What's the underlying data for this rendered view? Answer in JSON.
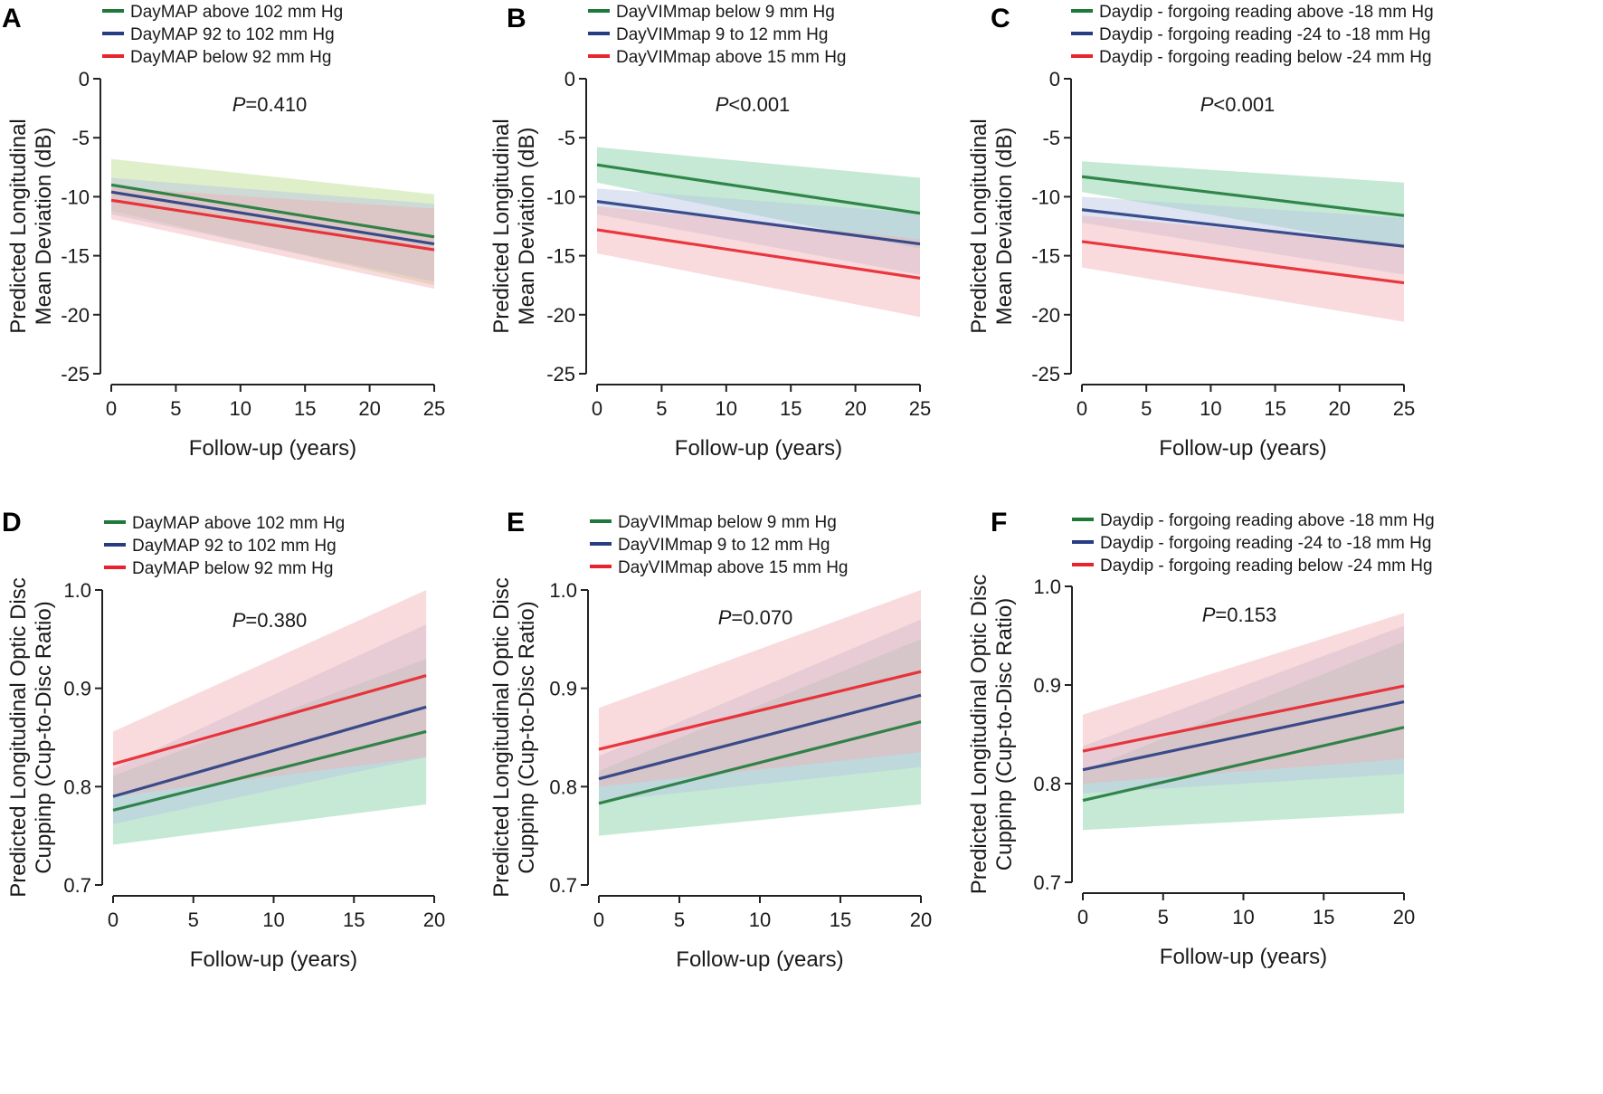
{
  "colors": {
    "green": "#1f7a3a",
    "navy": "#283c82",
    "red": "#e8232b",
    "green_band": "#7fcf9f",
    "navy_band": "#b8c4e4",
    "red_band": "#f2b0b4",
    "green_band_a": "#b7dc8a"
  },
  "chart_data": [
    {
      "type": "line",
      "panel": "A",
      "pvalue_prefix": "P",
      "pvalue_rest": "=0.410",
      "xlabel": "Follow-up (years)",
      "ylabel_lines": [
        "Predicted Longitudinal",
        "Mean Deviation (dB)"
      ],
      "xlim": [
        0,
        25
      ],
      "ylim": [
        -25,
        0
      ],
      "xticks": [
        0,
        5,
        10,
        15,
        20,
        25
      ],
      "yticks": [
        0,
        -5,
        -10,
        -15,
        -20,
        -25
      ],
      "series": [
        {
          "name": "DayMAP above 102 mm Hg",
          "color": "green",
          "band_color": "green_band_a",
          "x": [
            0,
            25
          ],
          "y": [
            -9.0,
            -13.4
          ],
          "lower": [
            -11.2,
            -17.5
          ],
          "upper": [
            -6.8,
            -9.8
          ]
        },
        {
          "name": "DayMAP 92 to 102 mm Hg",
          "color": "navy",
          "band_color": "navy_band",
          "x": [
            0,
            25
          ],
          "y": [
            -9.6,
            -14.0
          ],
          "lower": [
            -11.5,
            -17.2
          ],
          "upper": [
            -8.4,
            -10.6
          ]
        },
        {
          "name": "DayMAP below 92 mm Hg",
          "color": "red",
          "band_color": "red_band",
          "x": [
            0,
            25
          ],
          "y": [
            -10.3,
            -14.5
          ],
          "lower": [
            -11.9,
            -17.8
          ],
          "upper": [
            -9.2,
            -11.0
          ]
        }
      ]
    },
    {
      "type": "line",
      "panel": "B",
      "pvalue_prefix": "P",
      "pvalue_rest": "<0.001",
      "xlabel": "Follow-up (years)",
      "ylabel_lines": [
        "Predicted Longitudinal",
        "Mean Deviation (dB)"
      ],
      "xlim": [
        0,
        25
      ],
      "ylim": [
        -25,
        0
      ],
      "xticks": [
        0,
        5,
        10,
        15,
        20,
        25
      ],
      "yticks": [
        0,
        -5,
        -10,
        -15,
        -20,
        -25
      ],
      "series": [
        {
          "name": "DayVIMmap below 9 mm Hg",
          "color": "green",
          "band_color": "green_band",
          "x": [
            0,
            25
          ],
          "y": [
            -7.3,
            -11.4
          ],
          "lower": [
            -8.8,
            -14.4
          ],
          "upper": [
            -5.8,
            -8.4
          ]
        },
        {
          "name": "DayVIMmap 9 to 12 mm Hg",
          "color": "navy",
          "band_color": "navy_band",
          "x": [
            0,
            25
          ],
          "y": [
            -10.4,
            -14.0
          ],
          "lower": [
            -11.5,
            -16.6
          ],
          "upper": [
            -9.3,
            -11.4
          ]
        },
        {
          "name": "DayVIMmap above 15 mm Hg",
          "color": "red",
          "band_color": "red_band",
          "x": [
            0,
            25
          ],
          "y": [
            -12.8,
            -16.9
          ],
          "lower": [
            -14.8,
            -20.2
          ],
          "upper": [
            -10.8,
            -13.6
          ]
        }
      ]
    },
    {
      "type": "line",
      "panel": "C",
      "pvalue_prefix": "P",
      "pvalue_rest": "<0.001",
      "xlabel": "Follow-up (years)",
      "ylabel_lines": [
        "Predicted Longitudinal",
        "Mean Deviation (dB)"
      ],
      "xlim": [
        0,
        25
      ],
      "ylim": [
        -25,
        0
      ],
      "xticks": [
        0,
        5,
        10,
        15,
        20,
        25
      ],
      "yticks": [
        0,
        -5,
        -10,
        -15,
        -20,
        -25
      ],
      "series": [
        {
          "name": "Daydip - forgoing reading above -18 mm Hg",
          "color": "green",
          "band_color": "green_band",
          "x": [
            0,
            25
          ],
          "y": [
            -8.3,
            -11.6
          ],
          "lower": [
            -9.6,
            -14.4
          ],
          "upper": [
            -7.0,
            -8.8
          ]
        },
        {
          "name": "Daydip - forgoing reading -24 to -18 mm Hg",
          "color": "navy",
          "band_color": "navy_band",
          "x": [
            0,
            25
          ],
          "y": [
            -11.1,
            -14.2
          ],
          "lower": [
            -12.2,
            -16.6
          ],
          "upper": [
            -10.0,
            -11.8
          ]
        },
        {
          "name": "Daydip - forgoing reading below -24 mm Hg",
          "color": "red",
          "band_color": "red_band",
          "x": [
            0,
            25
          ],
          "y": [
            -13.8,
            -17.3
          ],
          "lower": [
            -16.0,
            -20.6
          ],
          "upper": [
            -11.6,
            -14.0
          ]
        }
      ]
    },
    {
      "type": "line",
      "panel": "D",
      "pvalue_prefix": "P",
      "pvalue_rest": "=0.380",
      "xlabel": "Follow-up (years)",
      "ylabel_lines": [
        "Predicted Longitudinal Optic Disc",
        "Cuppinp (Cup-to-Disc Ratio)"
      ],
      "xlim": [
        0,
        20
      ],
      "ylim": [
        0.7,
        1.0
      ],
      "xticks": [
        0,
        5,
        10,
        15,
        20
      ],
      "yticks": [
        1.0,
        0.9,
        0.8,
        0.7
      ],
      "tick_labels": [
        "1.0",
        "0.9",
        "0.8",
        "0.7"
      ],
      "series": [
        {
          "name": "DayMAP above 102 mm Hg",
          "color": "green",
          "band_color": "green_band",
          "x": [
            0,
            19.5
          ],
          "y": [
            0.776,
            0.856
          ],
          "lower": [
            0.741,
            0.782
          ],
          "upper": [
            0.811,
            0.93
          ]
        },
        {
          "name": "DayMAP 92 to 102 mm Hg",
          "color": "navy",
          "band_color": "navy_band",
          "x": [
            0,
            19.5
          ],
          "y": [
            0.79,
            0.881
          ],
          "lower": [
            0.762,
            0.83
          ],
          "upper": [
            0.818,
            0.965
          ]
        },
        {
          "name": "DayMAP below 92 mm Hg",
          "color": "red",
          "band_color": "red_band",
          "x": [
            0,
            19.5
          ],
          "y": [
            0.823,
            0.913
          ],
          "lower": [
            0.79,
            0.83
          ],
          "upper": [
            0.856,
            1.0
          ]
        }
      ]
    },
    {
      "type": "line",
      "panel": "E",
      "pvalue_prefix": "P",
      "pvalue_rest": "=0.070",
      "xlabel": "Follow-up (years)",
      "ylabel_lines": [
        "Predicted Longitudinal Optic Disc",
        "Cuppinp (Cup-to-Disc Ratio)"
      ],
      "xlim": [
        0,
        20
      ],
      "ylim": [
        0.7,
        1.0
      ],
      "xticks": [
        0,
        5,
        10,
        15,
        20
      ],
      "yticks": [
        1.0,
        0.9,
        0.8,
        0.7
      ],
      "tick_labels": [
        "1.0",
        "0.9",
        "0.8",
        "0.7"
      ],
      "series": [
        {
          "name": "DayVIMmap below 9 mm Hg",
          "color": "green",
          "band_color": "green_band",
          "x": [
            0,
            20
          ],
          "y": [
            0.783,
            0.866
          ],
          "lower": [
            0.75,
            0.782
          ],
          "upper": [
            0.816,
            0.95
          ]
        },
        {
          "name": "DayVIMmap 9 to 12 mm Hg",
          "color": "navy",
          "band_color": "navy_band",
          "x": [
            0,
            20
          ],
          "y": [
            0.808,
            0.893
          ],
          "lower": [
            0.785,
            0.82
          ],
          "upper": [
            0.831,
            0.97
          ]
        },
        {
          "name": "DayVIMmap above 15 mm Hg",
          "color": "red",
          "band_color": "red_band",
          "x": [
            0,
            20
          ],
          "y": [
            0.838,
            0.917
          ],
          "lower": [
            0.8,
            0.835
          ],
          "upper": [
            0.88,
            1.0
          ]
        }
      ]
    },
    {
      "type": "line",
      "panel": "F",
      "pvalue_prefix": "P",
      "pvalue_rest": "=0.153",
      "xlabel": "Follow-up (years)",
      "ylabel_lines": [
        "Predicted Longitudinal Optic Disc",
        "Cuppinp (Cup-to-Disc Ratio)"
      ],
      "xlim": [
        0,
        20
      ],
      "ylim": [
        0.7,
        1.0
      ],
      "xticks": [
        0,
        5,
        10,
        15,
        20
      ],
      "yticks": [
        1.0,
        0.9,
        0.8,
        0.7
      ],
      "tick_labels": [
        "1.0",
        "0.9",
        "0.8",
        "0.7"
      ],
      "series": [
        {
          "name": "Daydip - forgoing reading above -18 mm Hg",
          "color": "green",
          "band_color": "green_band",
          "x": [
            0,
            20
          ],
          "y": [
            0.783,
            0.857
          ],
          "lower": [
            0.753,
            0.77
          ],
          "upper": [
            0.813,
            0.944
          ]
        },
        {
          "name": "Daydip - forgoing reading -24 to -18 mm Hg",
          "color": "navy",
          "band_color": "navy_band",
          "x": [
            0,
            20
          ],
          "y": [
            0.814,
            0.883
          ],
          "lower": [
            0.79,
            0.81
          ],
          "upper": [
            0.838,
            0.96
          ]
        },
        {
          "name": "Daydip - forgoing reading below -24 mm Hg",
          "color": "red",
          "band_color": "red_band",
          "x": [
            0,
            20
          ],
          "y": [
            0.833,
            0.899
          ],
          "lower": [
            0.8,
            0.825
          ],
          "upper": [
            0.87,
            0.973
          ]
        }
      ]
    }
  ]
}
